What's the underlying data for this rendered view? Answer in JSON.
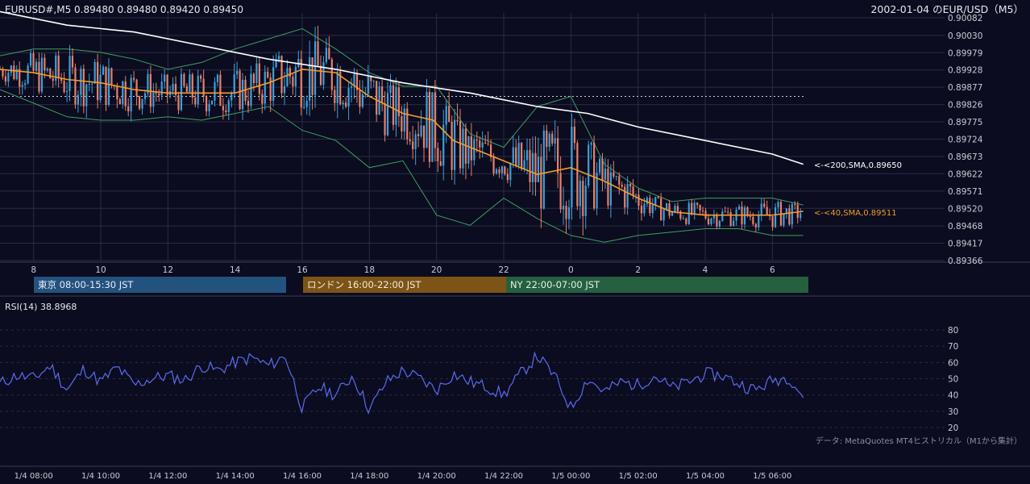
{
  "header": {
    "symbol_info": "EURUSD#,M5 0.89480 0.89480 0.89420 0.89450",
    "title": "2002-01-04 のEUR/USD（M5）"
  },
  "chart_data": [
    {
      "type": "candlestick",
      "title": "EUR/USD（M5）",
      "symbol": "EURUSD#",
      "timeframe": "M5",
      "last_ohlc": {
        "open": 0.8948,
        "high": 0.8948,
        "low": 0.8942,
        "close": 0.8945
      },
      "ylim": [
        0.89366,
        0.90082
      ],
      "y_ticks": [
        "0.90082",
        "0.90030",
        "0.89979",
        "0.89928",
        "0.89877",
        "0.89826",
        "0.89775",
        "0.89724",
        "0.89673",
        "0.89622",
        "0.89571",
        "0.89520",
        "0.89468",
        "0.89417",
        "0.89366"
      ],
      "x_ticks": [
        "8",
        "10",
        "12",
        "14",
        "16",
        "18",
        "20",
        "22",
        "0",
        "2",
        "4",
        "6"
      ],
      "x_hours": [
        8,
        10,
        12,
        14,
        16,
        18,
        20,
        22,
        24,
        26,
        28,
        30
      ],
      "x_range_hours": [
        7.0,
        31.0
      ],
      "reference_level": 0.8985,
      "sma200": {
        "label": "<-<200,SMA,0.89650",
        "color": "#ffffff",
        "x": [
          7.0,
          9.0,
          11.0,
          13.0,
          15.0,
          17.0,
          19.0,
          21.0,
          23.0,
          24.5,
          26.0,
          28.0,
          30.0,
          30.92
        ],
        "values": [
          0.901,
          0.9006,
          0.9004,
          0.9,
          0.8996,
          0.8993,
          0.8989,
          0.8986,
          0.8982,
          0.898,
          0.8976,
          0.8972,
          0.8968,
          0.8965
        ]
      },
      "sma40": {
        "label": "<-<40,SMA,0.89511",
        "color": "#f39c2c",
        "x": [
          7.0,
          8.0,
          9.0,
          10.0,
          11.0,
          12.0,
          13.0,
          14.0,
          15.0,
          16.0,
          17.0,
          18.0,
          19.0,
          19.9,
          20.5,
          21.5,
          22.5,
          23.0,
          24.0,
          25.0,
          26.0,
          27.0,
          28.0,
          29.0,
          30.0,
          30.92
        ],
        "values": [
          0.8993,
          0.8992,
          0.899,
          0.8989,
          0.8987,
          0.8986,
          0.8986,
          0.8986,
          0.8989,
          0.8993,
          0.8992,
          0.8985,
          0.898,
          0.8978,
          0.8972,
          0.8968,
          0.8964,
          0.8962,
          0.8964,
          0.896,
          0.8955,
          0.8951,
          0.895,
          0.895,
          0.895,
          0.89511
        ]
      },
      "bb_upper": {
        "x": [
          7.0,
          8.0,
          9.0,
          10.0,
          11.0,
          12.0,
          13.0,
          14.0,
          15.0,
          16.0,
          17.0,
          18.0,
          19.0,
          20.0,
          21.0,
          22.0,
          23.0,
          24.0,
          25.0,
          26.0,
          27.0,
          28.0,
          29.0,
          30.0,
          30.92
        ],
        "values": [
          0.8997,
          0.8999,
          0.8999,
          0.8998,
          0.8996,
          0.8993,
          0.8995,
          0.8999,
          0.9002,
          0.9005,
          0.8999,
          0.8992,
          0.8988,
          0.8988,
          0.8974,
          0.897,
          0.8982,
          0.8985,
          0.8965,
          0.8958,
          0.8954,
          0.8955,
          0.8955,
          0.8955,
          0.8953
        ]
      },
      "bb_lower": {
        "x": [
          7.0,
          8.0,
          9.0,
          10.0,
          11.0,
          12.0,
          13.0,
          14.0,
          15.0,
          16.0,
          17.0,
          18.0,
          19.0,
          20.0,
          21.0,
          22.0,
          23.0,
          24.0,
          25.0,
          26.0,
          27.0,
          28.0,
          29.0,
          30.0,
          30.92
        ],
        "values": [
          0.8987,
          0.8983,
          0.8979,
          0.8978,
          0.8978,
          0.8979,
          0.8978,
          0.898,
          0.8982,
          0.8975,
          0.8972,
          0.8964,
          0.8966,
          0.895,
          0.8947,
          0.8955,
          0.8949,
          0.8944,
          0.8942,
          0.8944,
          0.8945,
          0.8946,
          0.8946,
          0.8944,
          0.8944
        ]
      }
    },
    {
      "type": "line",
      "title": "RSI(14) 38.8968",
      "name": "RSI(14)",
      "last_value": 38.8968,
      "color": "#5b6cf0",
      "ylim": [
        20,
        80
      ],
      "y_ticks": [
        80,
        70,
        60,
        50,
        40,
        30,
        20
      ],
      "x_range_hours": [
        7.0,
        31.0
      ],
      "x": [
        7.0,
        7.5,
        8.0,
        8.5,
        9.0,
        9.5,
        10.0,
        10.5,
        11.0,
        11.5,
        12.0,
        12.5,
        13.0,
        13.5,
        14.0,
        14.5,
        15.0,
        15.5,
        16.0,
        16.5,
        17.0,
        17.5,
        18.0,
        18.5,
        19.0,
        19.5,
        20.0,
        20.5,
        21.0,
        21.5,
        22.0,
        22.5,
        23.0,
        23.5,
        24.0,
        24.5,
        25.0,
        25.5,
        26.0,
        26.5,
        27.0,
        27.5,
        28.0,
        28.5,
        29.0,
        29.5,
        30.0,
        30.5,
        30.92
      ],
      "values": [
        47,
        52,
        50,
        58,
        43,
        56,
        48,
        57,
        46,
        50,
        52,
        49,
        58,
        55,
        60,
        63,
        58,
        64,
        32,
        45,
        40,
        52,
        31,
        48,
        55,
        50,
        43,
        53,
        48,
        45,
        40,
        53,
        64,
        52,
        32,
        50,
        42,
        48,
        46,
        52,
        44,
        48,
        53,
        52,
        47,
        43,
        49,
        51,
        39
      ]
    }
  ],
  "sessions": [
    {
      "label": "東京 08:00-15:30 JST",
      "color": "#24527f"
    },
    {
      "label": "ロンドン 16:00-22:00 JST",
      "color": "#7d5417"
    },
    {
      "label": "NY 22:00-07:00 JST",
      "color": "#25603f"
    }
  ],
  "time_axis": {
    "labels": [
      "1/4 08:00",
      "1/4 10:00",
      "1/4 12:00",
      "1/4 14:00",
      "1/4 16:00",
      "1/4 18:00",
      "1/4 20:00",
      "1/4 22:00",
      "1/5 00:00",
      "1/5 02:00",
      "1/5 04:00",
      "1/5 06:00"
    ]
  },
  "footer": {
    "credit": "データ: MetaQuotes MT4ヒストリカル（M1から集計）"
  },
  "colors": {
    "background": "#0b0c1f",
    "grid": "#2a2c45",
    "bull": "#3aa0dc",
    "bear": "#e8806a",
    "bollinger": "#3e9e63",
    "text": "#d8d8e0",
    "axis_text": "#c9cad6"
  }
}
